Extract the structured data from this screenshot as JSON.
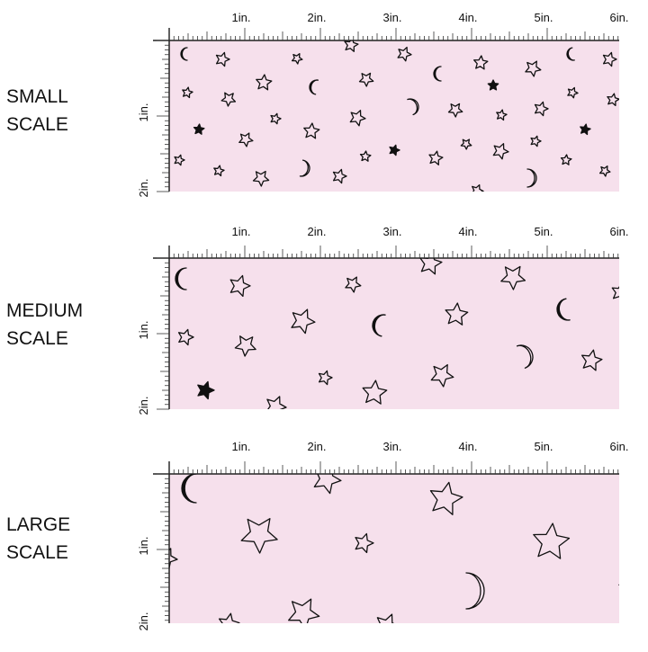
{
  "panels": [
    {
      "label_lines": [
        "SMALL",
        "SCALE"
      ],
      "ruler_top": [
        "1in.",
        "2in.",
        "3in.",
        "4in.",
        "5in.",
        "6in."
      ],
      "ruler_left": [
        "1in.",
        "2in."
      ]
    },
    {
      "label_lines": [
        "MEDIUM",
        "SCALE"
      ],
      "ruler_top": [
        "1in.",
        "2in.",
        "3in.",
        "4in.",
        "5in.",
        "6in."
      ],
      "ruler_left": [
        "1in.",
        "2in."
      ]
    },
    {
      "label_lines": [
        "LARGE",
        "SCALE"
      ],
      "ruler_top": [
        "1in.",
        "2in.",
        "3in.",
        "4in.",
        "5in.",
        "6in."
      ],
      "ruler_left": [
        "1in.",
        "2in."
      ]
    }
  ]
}
